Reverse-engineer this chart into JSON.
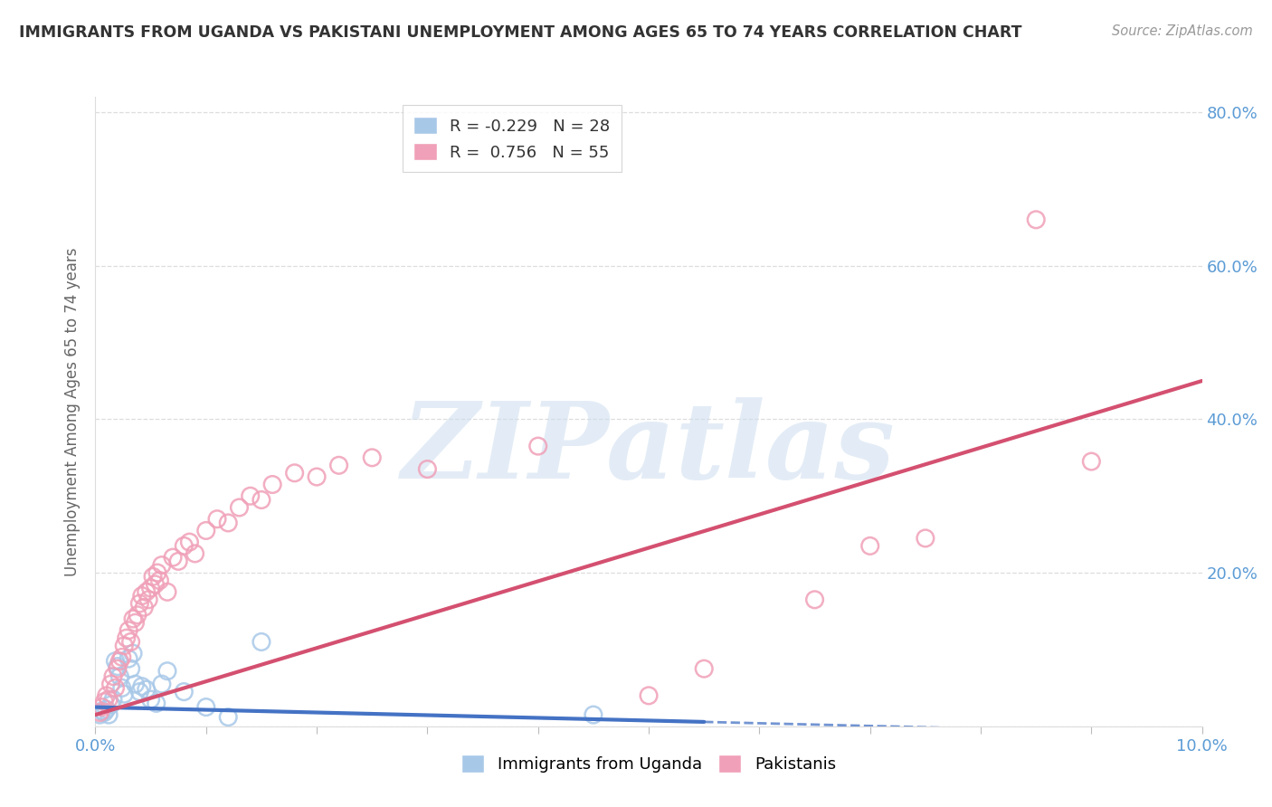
{
  "title": "IMMIGRANTS FROM UGANDA VS PAKISTANI UNEMPLOYMENT AMONG AGES 65 TO 74 YEARS CORRELATION CHART",
  "source": "Source: ZipAtlas.com",
  "ylabel": "Unemployment Among Ages 65 to 74 years",
  "xlim": [
    0.0,
    10.0
  ],
  "ylim": [
    0.0,
    82.0
  ],
  "watermark": "ZIPatlas",
  "legend_r_uganda": "-0.229",
  "legend_n_uganda": "28",
  "legend_r_pakistani": "0.756",
  "legend_n_pakistani": "55",
  "uganda_color": "#a8c8e8",
  "pakistan_color": "#f0a0b8",
  "uganda_line_color": "#4472c4",
  "pakistan_line_color": "#d45070",
  "uganda_points": [
    [
      0.04,
      1.5
    ],
    [
      0.06,
      2.0
    ],
    [
      0.08,
      1.8
    ],
    [
      0.1,
      2.2
    ],
    [
      0.12,
      1.5
    ],
    [
      0.14,
      2.8
    ],
    [
      0.16,
      3.5
    ],
    [
      0.18,
      8.5
    ],
    [
      0.2,
      7.8
    ],
    [
      0.22,
      6.5
    ],
    [
      0.24,
      5.0
    ],
    [
      0.26,
      4.2
    ],
    [
      0.3,
      8.8
    ],
    [
      0.32,
      7.5
    ],
    [
      0.34,
      9.5
    ],
    [
      0.36,
      5.5
    ],
    [
      0.4,
      4.5
    ],
    [
      0.42,
      5.2
    ],
    [
      0.46,
      4.8
    ],
    [
      0.5,
      3.5
    ],
    [
      0.55,
      3.0
    ],
    [
      0.6,
      5.5
    ],
    [
      0.65,
      7.2
    ],
    [
      0.8,
      4.5
    ],
    [
      1.0,
      2.5
    ],
    [
      1.2,
      1.2
    ],
    [
      1.5,
      11.0
    ],
    [
      4.5,
      1.5
    ]
  ],
  "pakistan_points": [
    [
      0.04,
      1.8
    ],
    [
      0.06,
      2.5
    ],
    [
      0.08,
      3.2
    ],
    [
      0.1,
      4.0
    ],
    [
      0.12,
      3.5
    ],
    [
      0.14,
      5.5
    ],
    [
      0.16,
      6.5
    ],
    [
      0.18,
      5.0
    ],
    [
      0.2,
      7.5
    ],
    [
      0.22,
      8.5
    ],
    [
      0.24,
      9.0
    ],
    [
      0.26,
      10.5
    ],
    [
      0.28,
      11.5
    ],
    [
      0.3,
      12.5
    ],
    [
      0.32,
      11.0
    ],
    [
      0.34,
      14.0
    ],
    [
      0.36,
      13.5
    ],
    [
      0.38,
      14.5
    ],
    [
      0.4,
      16.0
    ],
    [
      0.42,
      17.0
    ],
    [
      0.44,
      15.5
    ],
    [
      0.46,
      17.5
    ],
    [
      0.48,
      16.5
    ],
    [
      0.5,
      18.0
    ],
    [
      0.52,
      19.5
    ],
    [
      0.54,
      18.5
    ],
    [
      0.56,
      20.0
    ],
    [
      0.58,
      19.0
    ],
    [
      0.6,
      21.0
    ],
    [
      0.65,
      17.5
    ],
    [
      0.7,
      22.0
    ],
    [
      0.75,
      21.5
    ],
    [
      0.8,
      23.5
    ],
    [
      0.85,
      24.0
    ],
    [
      0.9,
      22.5
    ],
    [
      1.0,
      25.5
    ],
    [
      1.1,
      27.0
    ],
    [
      1.2,
      26.5
    ],
    [
      1.3,
      28.5
    ],
    [
      1.4,
      30.0
    ],
    [
      1.5,
      29.5
    ],
    [
      1.6,
      31.5
    ],
    [
      1.8,
      33.0
    ],
    [
      2.0,
      32.5
    ],
    [
      2.2,
      34.0
    ],
    [
      2.5,
      35.0
    ],
    [
      3.0,
      33.5
    ],
    [
      4.0,
      36.5
    ],
    [
      5.0,
      4.0
    ],
    [
      5.5,
      7.5
    ],
    [
      6.5,
      16.5
    ],
    [
      7.0,
      23.5
    ],
    [
      7.5,
      24.5
    ],
    [
      8.5,
      66.0
    ],
    [
      9.0,
      34.5
    ]
  ],
  "uganda_trend_x0": 0.0,
  "uganda_trend_y0": 2.5,
  "uganda_trend_x1": 10.0,
  "uganda_trend_y1": -1.0,
  "uganda_solid_end_x": 5.5,
  "pakistan_trend_x0": 0.0,
  "pakistan_trend_y0": 1.5,
  "pakistan_trend_x1": 10.0,
  "pakistan_trend_y1": 45.0,
  "grid_color": "#dddddd",
  "axis_color": "#5b9bd5",
  "title_color": "#333333",
  "source_color": "#999999"
}
